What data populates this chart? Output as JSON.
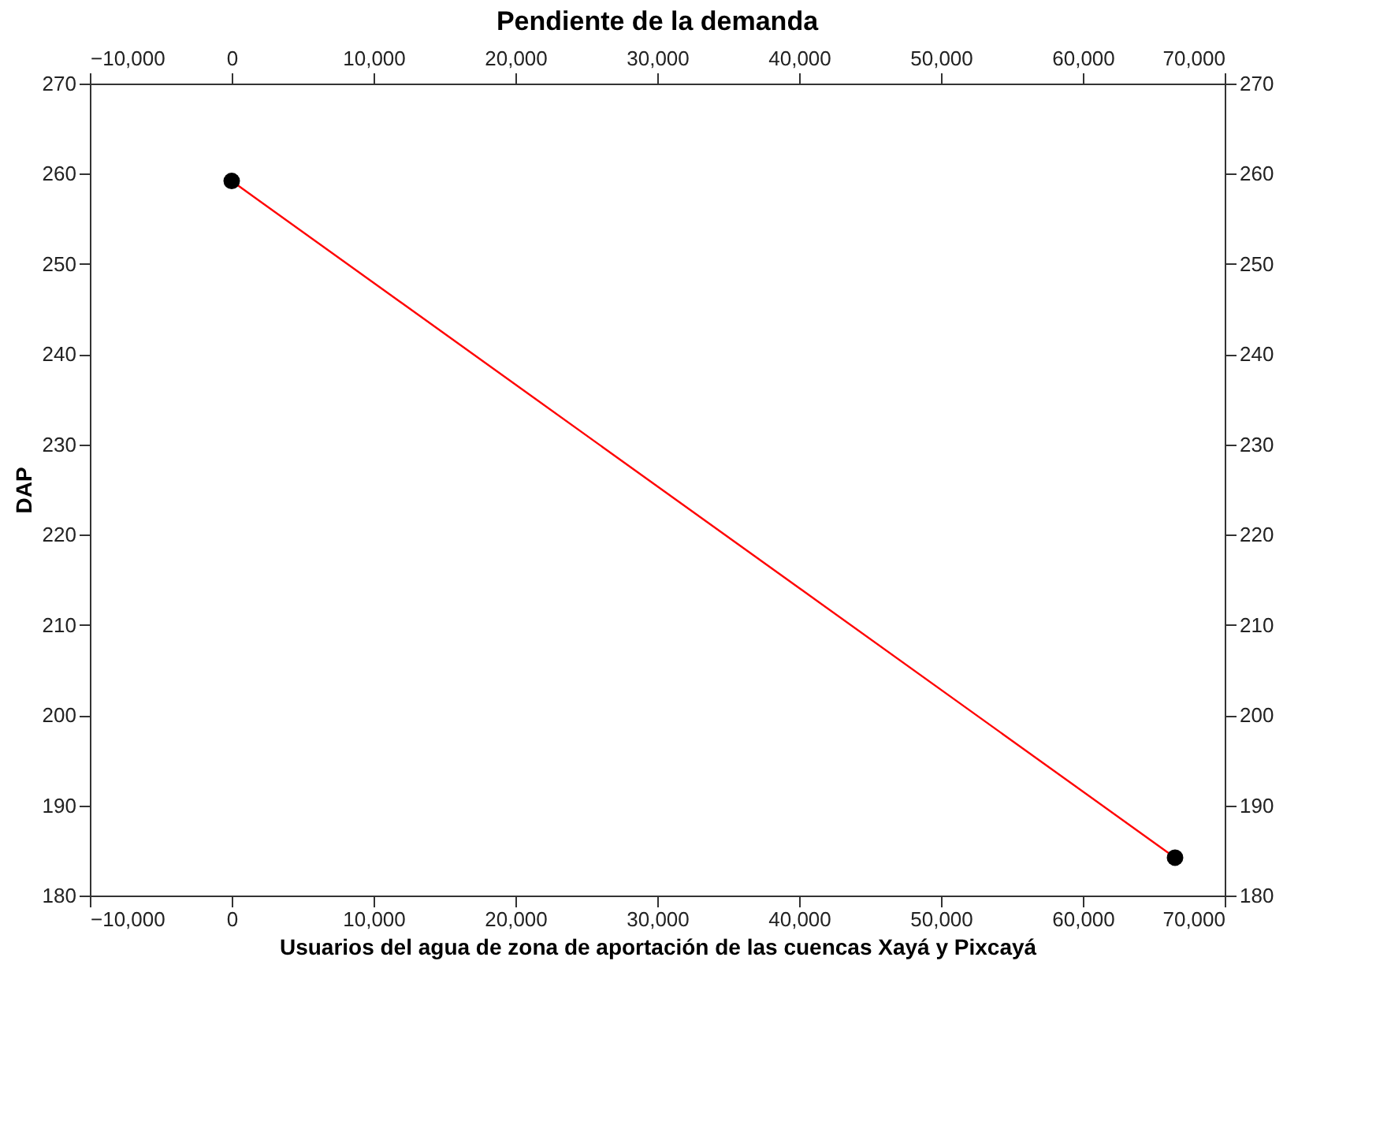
{
  "chart_data": {
    "type": "line",
    "title": "Pendiente de la demanda",
    "xlabel": "Usuarios del agua de zona de aportación de las cuencas Xayá y Pixcayá",
    "ylabel": "DAP",
    "x": [
      0,
      66500
    ],
    "series": [
      {
        "color": "#ff0000",
        "values": [
          259.2,
          184.2
        ],
        "marker": "circle"
      }
    ],
    "xlim": [
      -10000,
      70000
    ],
    "xticks": [
      {
        "value": -10000,
        "label": "−10,000"
      },
      {
        "value": 0,
        "label": "0"
      },
      {
        "value": 10000,
        "label": "10,000"
      },
      {
        "value": 20000,
        "label": "20,000"
      },
      {
        "value": 30000,
        "label": "30,000"
      },
      {
        "value": 40000,
        "label": "40,000"
      },
      {
        "value": 50000,
        "label": "50,000"
      },
      {
        "value": 60000,
        "label": "60,000"
      },
      {
        "value": 70000,
        "label": "70,000"
      }
    ],
    "x2lim": [
      -10000,
      70000
    ],
    "x2ticks": [
      {
        "value": -10000,
        "label": "−10,000"
      },
      {
        "value": 0,
        "label": "0"
      },
      {
        "value": 10000,
        "label": "10,000"
      },
      {
        "value": 20000,
        "label": "20,000"
      },
      {
        "value": 30000,
        "label": "30,000"
      },
      {
        "value": 40000,
        "label": "40,000"
      },
      {
        "value": 50000,
        "label": "50,000"
      },
      {
        "value": 60000,
        "label": "60,000"
      },
      {
        "value": 70000,
        "label": "70,000"
      }
    ],
    "ylim": [
      180,
      270
    ],
    "yticks": [
      180,
      190,
      200,
      210,
      220,
      230,
      240,
      250,
      260,
      270
    ],
    "y2lim": [
      180,
      270
    ],
    "y2ticks": [
      180,
      190,
      200,
      210,
      220,
      230,
      240,
      250,
      260,
      270
    ],
    "grid": false
  }
}
